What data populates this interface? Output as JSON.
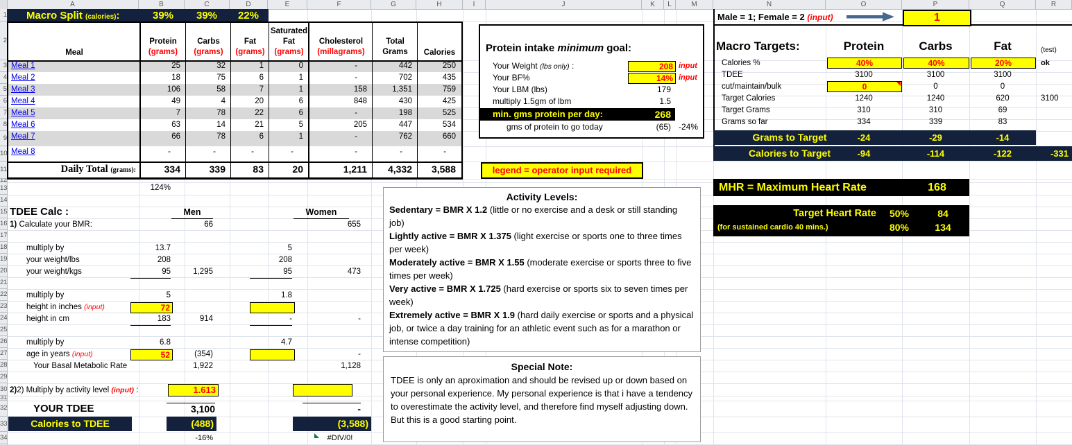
{
  "colors": {
    "accent_navy": "#14213d",
    "input_yellow": "#ffff00",
    "alert_red": "#ff0000",
    "link_blue": "#0000ee",
    "arrow_blue": "#47688e"
  },
  "columns": [
    "A",
    "B",
    "C",
    "D",
    "E",
    "F",
    "G",
    "H",
    "I",
    "J",
    "K",
    "L",
    "M",
    "N",
    "O",
    "P",
    "Q",
    "R"
  ],
  "row_numbers": [
    "1",
    "2",
    "3",
    "4",
    "5",
    "6",
    "7",
    "8",
    "9",
    "10",
    "11",
    "12",
    "13",
    "14",
    "15",
    "16",
    "17",
    "18",
    "19",
    "20",
    "21",
    "22",
    "23",
    "24",
    "25",
    "26",
    "27",
    "28",
    "29",
    "30",
    "31",
    "32",
    "33",
    "34"
  ],
  "macro_split": {
    "title": "Macro Split",
    "unit": "(calories)",
    "colon": ":",
    "values": [
      "39%",
      "39%",
      "22%"
    ]
  },
  "meal_table": {
    "headers": {
      "meal": "Meal",
      "protein": {
        "t": "Protein",
        "u": "(grams)"
      },
      "carbs": {
        "t": "Carbs",
        "u": "(grams)"
      },
      "fat": {
        "t": "Fat",
        "u": "(grams)"
      },
      "sat_fat": {
        "t1": "Saturated",
        "t2": "Fat",
        "u": "(grams)"
      },
      "cholesterol": {
        "t": "Cholesterol",
        "u": "(millagrams)"
      },
      "total_grams": {
        "t1": "Total",
        "t2": "Grams"
      },
      "calories": {
        "t": "Calories"
      }
    },
    "rows": [
      {
        "name": "Meal 1",
        "protein": "25",
        "carbs": "32",
        "fat": "1",
        "sat_fat": "0",
        "cholesterol": "-",
        "total_grams": "442",
        "calories": "250"
      },
      {
        "name": "Meal 2",
        "protein": "18",
        "carbs": "75",
        "fat": "6",
        "sat_fat": "1",
        "cholesterol": "-",
        "total_grams": "702",
        "calories": "435"
      },
      {
        "name": "Meal 3",
        "protein": "106",
        "carbs": "58",
        "fat": "7",
        "sat_fat": "1",
        "cholesterol": "158",
        "total_grams": "1,351",
        "calories": "759"
      },
      {
        "name": "Meal 4",
        "protein": "49",
        "carbs": "4",
        "fat": "20",
        "sat_fat": "6",
        "cholesterol": "848",
        "total_grams": "430",
        "calories": "425"
      },
      {
        "name": "Meal 5",
        "protein": "7",
        "carbs": "78",
        "fat": "22",
        "sat_fat": "6",
        "cholesterol": "-",
        "total_grams": "198",
        "calories": "525"
      },
      {
        "name": "Meal 6",
        "protein": "63",
        "carbs": "14",
        "fat": "21",
        "sat_fat": "5",
        "cholesterol": "205",
        "total_grams": "447",
        "calories": "534"
      },
      {
        "name": "Meal 7",
        "protein": "66",
        "carbs": "78",
        "fat": "6",
        "sat_fat": "1",
        "cholesterol": "-",
        "total_grams": "762",
        "calories": "660"
      },
      {
        "name": "Meal 8",
        "protein": "-",
        "carbs": "-",
        "fat": "-",
        "sat_fat": "-",
        "cholesterol": "-",
        "total_grams": "-",
        "calories": "-"
      }
    ],
    "total": {
      "label": "Daily Total",
      "unit": "(grams):",
      "protein": "334",
      "carbs": "339",
      "fat": "83",
      "sat_fat": "20",
      "cholesterol": "1,211",
      "total_grams": "4,332",
      "calories": "3,588"
    },
    "pct_of_goal": "124%"
  },
  "protein_goal": {
    "title_pre": "Protein intake ",
    "title_em": "minimum",
    "title_post": " goal:",
    "weight": {
      "label_pre": "Your Weight ",
      "label_em": "(lbs only)",
      "label_post": " :",
      "value": "208",
      "note": "input"
    },
    "bf": {
      "label": "Your BF%",
      "value": "14%",
      "note": "input"
    },
    "lbm": {
      "label": "Your LBM (lbs)",
      "value": "179"
    },
    "multiply": {
      "label": "multiply 1.5gm of lbm",
      "value": "1.5"
    },
    "min": {
      "label": "min. gms protein per day:",
      "value": "268"
    },
    "togo": {
      "label": "gms of protein to go today",
      "value": "(65)",
      "pct": "-24%"
    }
  },
  "legend": {
    "text": "legend = operator input required"
  },
  "gender_row": {
    "label": "Male = 1; Female = 2 ",
    "note": "(input)",
    "value": "1"
  },
  "macro_targets": {
    "title": "Macro Targets:",
    "col_headers": [
      "Protein",
      "Carbs",
      "Fat"
    ],
    "test_note": "(test)",
    "rows": {
      "calories_pct": {
        "label": "Calories %",
        "values": [
          "40%",
          "40%",
          "20%"
        ],
        "ok": "ok"
      },
      "tdee": {
        "label": "TDEE",
        "values": [
          "3100",
          "3100",
          "3100"
        ]
      },
      "cut_maintain_bulk": {
        "label": "cut/maintain/bulk",
        "values": [
          "0",
          "0",
          "0"
        ]
      },
      "target_calories": {
        "label": "Target Calories",
        "values": [
          "1240",
          "1240",
          "620"
        ],
        "total": "3100"
      },
      "target_grams": {
        "label": "Target Grams",
        "values": [
          "310",
          "310",
          "69"
        ]
      },
      "grams_so_far": {
        "label": "Grams so far",
        "values": [
          "334",
          "339",
          "83"
        ]
      },
      "grams_to_target": {
        "label": "Grams to Target",
        "values": [
          "-24",
          "-29",
          "-14"
        ]
      },
      "calories_to_target": {
        "label": "Calories to Target",
        "values": [
          "-94",
          "-114",
          "-122"
        ],
        "total": "-331"
      }
    }
  },
  "mhr": {
    "label": "MHR = Maximum Heart Rate",
    "value": "168"
  },
  "target_heart_rate": {
    "label": "Target Heart Rate",
    "sub_label": "(for sustained cardio 40 mins.)",
    "rows": [
      {
        "pct": "50%",
        "bpm": "84"
      },
      {
        "pct": "80%",
        "bpm": "134"
      }
    ]
  },
  "tdee_calc": {
    "title": "TDEE Calc :",
    "men_header": "Men",
    "women_header": "Women",
    "bmr_label": "1) Calculate your BMR:",
    "bmr_men": "66",
    "bmr_women": "655",
    "rows": [
      {
        "label": "multiply by",
        "b": "13.7",
        "e": "5"
      },
      {
        "label": "your weight/lbs",
        "b": "208",
        "e": "208"
      },
      {
        "label": "your weight/kgs",
        "b": "95",
        "c": "1,295",
        "e": "95",
        "f": "473"
      },
      {
        "label": "multiply by",
        "b": "5",
        "e": "1.8"
      },
      {
        "label": "height in inches",
        "note": "(input)",
        "b": "72"
      },
      {
        "label": "height in cm",
        "b": "183",
        "c": "914",
        "e": "-",
        "f": "-"
      },
      {
        "label": "multiply by",
        "b": "6.8",
        "e": "4.7"
      },
      {
        "label": "age in years",
        "note": "(input)",
        "b": "52",
        "c": "(354)",
        "f": "-"
      },
      {
        "label": "Your Basal Metabolic Rate",
        "c": "1,922",
        "f": "1,128"
      }
    ],
    "activity_label": "2) Multiply by activity level ",
    "activity_note": "(input)",
    "activity_colon": " :",
    "activity_men": "1.613",
    "your_tdee_label": "YOUR TDEE",
    "your_tdee_men": "3,100",
    "your_tdee_women": "-",
    "cal_to_tdee_label": "Calories to TDEE",
    "cal_to_tdee_men": "(488)",
    "cal_to_tdee_women": "(3,588)",
    "pct_men": "-16%",
    "err_women": "#DIV/0!"
  },
  "activity_levels": {
    "title": "Activity Levels:",
    "items": [
      {
        "bold": "Sedentary = BMR X 1.2",
        "rest": " (little or no exercise and a desk or still standing job)"
      },
      {
        "bold": "Lightly active = BMR X 1.375",
        "rest": " (light exercise or sports one to three times per week)"
      },
      {
        "bold": "Moderately active = BMR X 1.55",
        "rest": " (moderate exercise or sports three to five times per week)"
      },
      {
        "bold": "Very active = BMR X 1.725",
        "rest": " (hard exercise or sports six to seven times per week)"
      },
      {
        "bold": "Extremely active = BMR X 1.9",
        "rest": " (hard daily exercise or sports and a physical job, or twice a day training for an athletic event such as for a marathon or intense competition)"
      }
    ]
  },
  "special_note": {
    "title": "Special Note:",
    "body": "TDEE is only an aproximation and should be revised up or down based on your personal experience.  My personal experience is that i have a tendency to overestimate the activity level, and therefore find myself adjusting down.  But this is a good starting point."
  }
}
